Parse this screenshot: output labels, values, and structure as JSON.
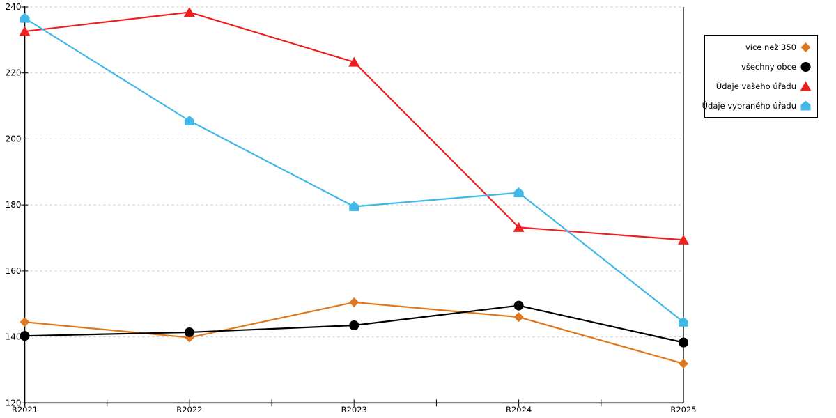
{
  "chart_data": {
    "type": "line",
    "title": "",
    "xlabel": "",
    "ylabel": "",
    "categories": [
      "R2021",
      "R2022",
      "R2023",
      "R2024",
      "R2025"
    ],
    "yticks": [
      120,
      140,
      160,
      180,
      200,
      220,
      240
    ],
    "ylim": [
      120,
      240
    ],
    "grid": "horizontal-dashed",
    "legend_position": "top-right",
    "series": [
      {
        "name": "více než 350",
        "marker": "diamond",
        "color": "#df771c",
        "values": [
          144.5,
          139.8,
          150.5,
          146.0,
          131.9
        ]
      },
      {
        "name": "všechny obce",
        "marker": "circle",
        "color": "#000000",
        "values": [
          140.3,
          141.4,
          143.5,
          149.5,
          138.3
        ]
      },
      {
        "name": "Údaje vašeho úřadu",
        "marker": "triangle",
        "color": "#ee1f1f",
        "values": [
          232.6,
          238.4,
          223.3,
          173.2,
          169.4
        ]
      },
      {
        "name": "Údaje vybraného úřadu",
        "marker": "pentagon",
        "color": "#41b8e8",
        "values": [
          236.6,
          205.5,
          179.5,
          183.7,
          144.5
        ]
      }
    ],
    "colors": {
      "background": "#ffffff",
      "axis": "#000000",
      "gridline": "#c9c9c9",
      "text": "#000000"
    }
  }
}
